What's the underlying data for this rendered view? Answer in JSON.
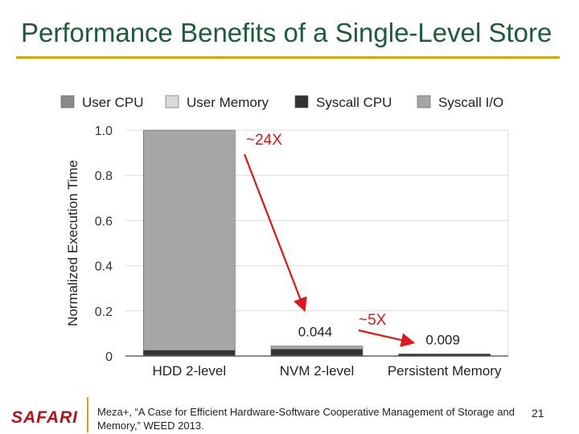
{
  "slide": {
    "title": "Performance Benefits of a Single-Level Store",
    "logo": "SAFARI",
    "citation": "Meza+, “A Case for Efficient Hardware-Software Cooperative Management of Storage and Memory,” WEED 2013.",
    "page_number": "21"
  },
  "chart_data": {
    "type": "bar",
    "stacked": true,
    "ylabel": "Normalized Execution Time",
    "ylim": [
      0,
      1.0
    ],
    "yticks": [
      "0",
      "0.2",
      "0.4",
      "0.6",
      "0.8",
      "1.0"
    ],
    "ytick_values": [
      0,
      0.2,
      0.4,
      0.6,
      0.8,
      1.0
    ],
    "grid": true,
    "legend_position": "top",
    "categories": [
      "HDD 2-level",
      "NVM 2-level",
      "Persistent Memory"
    ],
    "series": [
      {
        "name": "User CPU",
        "color": "#8c8c8c",
        "values": [
          0.003,
          0.003,
          0.002
        ]
      },
      {
        "name": "User Memory",
        "color": "#d9d9d9",
        "values": [
          0.002,
          0.002,
          0.001
        ]
      },
      {
        "name": "Syscall CPU",
        "color": "#333333",
        "values": [
          0.02,
          0.025,
          0.006
        ]
      },
      {
        "name": "Syscall I/O",
        "color": "#a6a6a6",
        "values": [
          0.975,
          0.014,
          0.0
        ]
      }
    ],
    "data_labels": [
      {
        "category": "NVM 2-level",
        "text": "0.044"
      },
      {
        "category": "Persistent Memory",
        "text": "0.009"
      }
    ],
    "annotations": [
      {
        "text": "~24X",
        "color": "#e0161b"
      },
      {
        "text": "~5X",
        "color": "#e0161b"
      }
    ]
  }
}
